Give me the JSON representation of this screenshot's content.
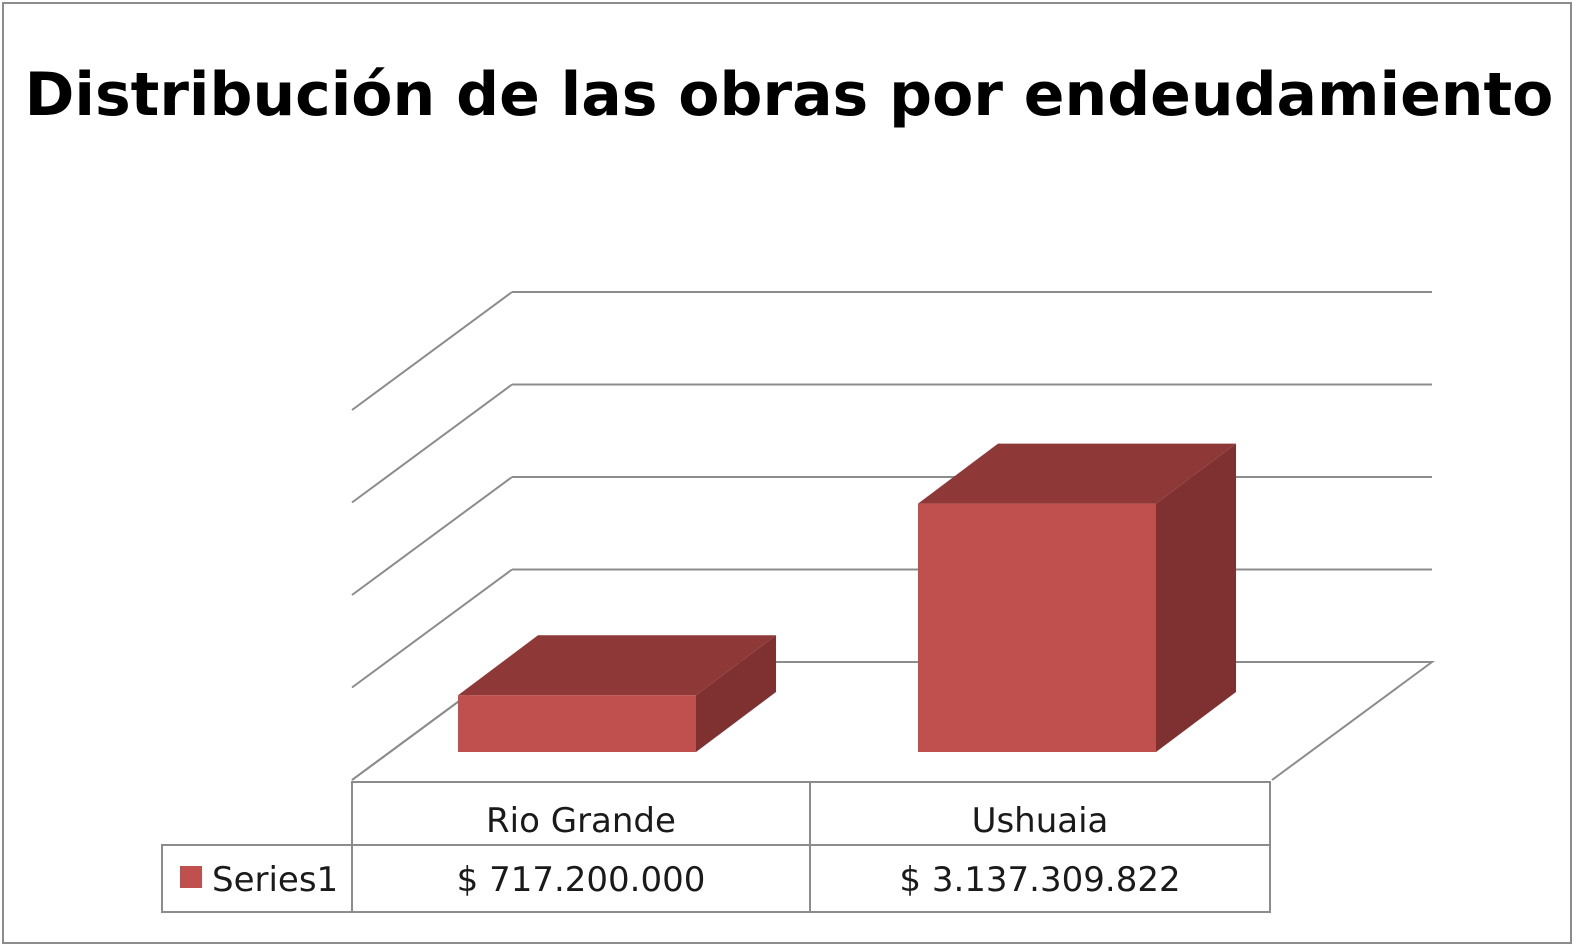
{
  "chart_data": {
    "type": "bar",
    "style": "3d-column-with-data-table",
    "title": "Distribución de las obras por endeudamiento",
    "categories": [
      "Rio Grande",
      "Ushuaia"
    ],
    "series": [
      {
        "name": "Series1",
        "values": [
          717200000,
          3137309822
        ],
        "value_labels": [
          "$ 717.200.000",
          "$ 3.137.309.822"
        ],
        "color": "#c0504d",
        "side_color": "#7f3131",
        "top_color": "#8e3837"
      }
    ],
    "ylim": [
      0,
      5000000000
    ],
    "grid": true,
    "legend": "data-table"
  }
}
